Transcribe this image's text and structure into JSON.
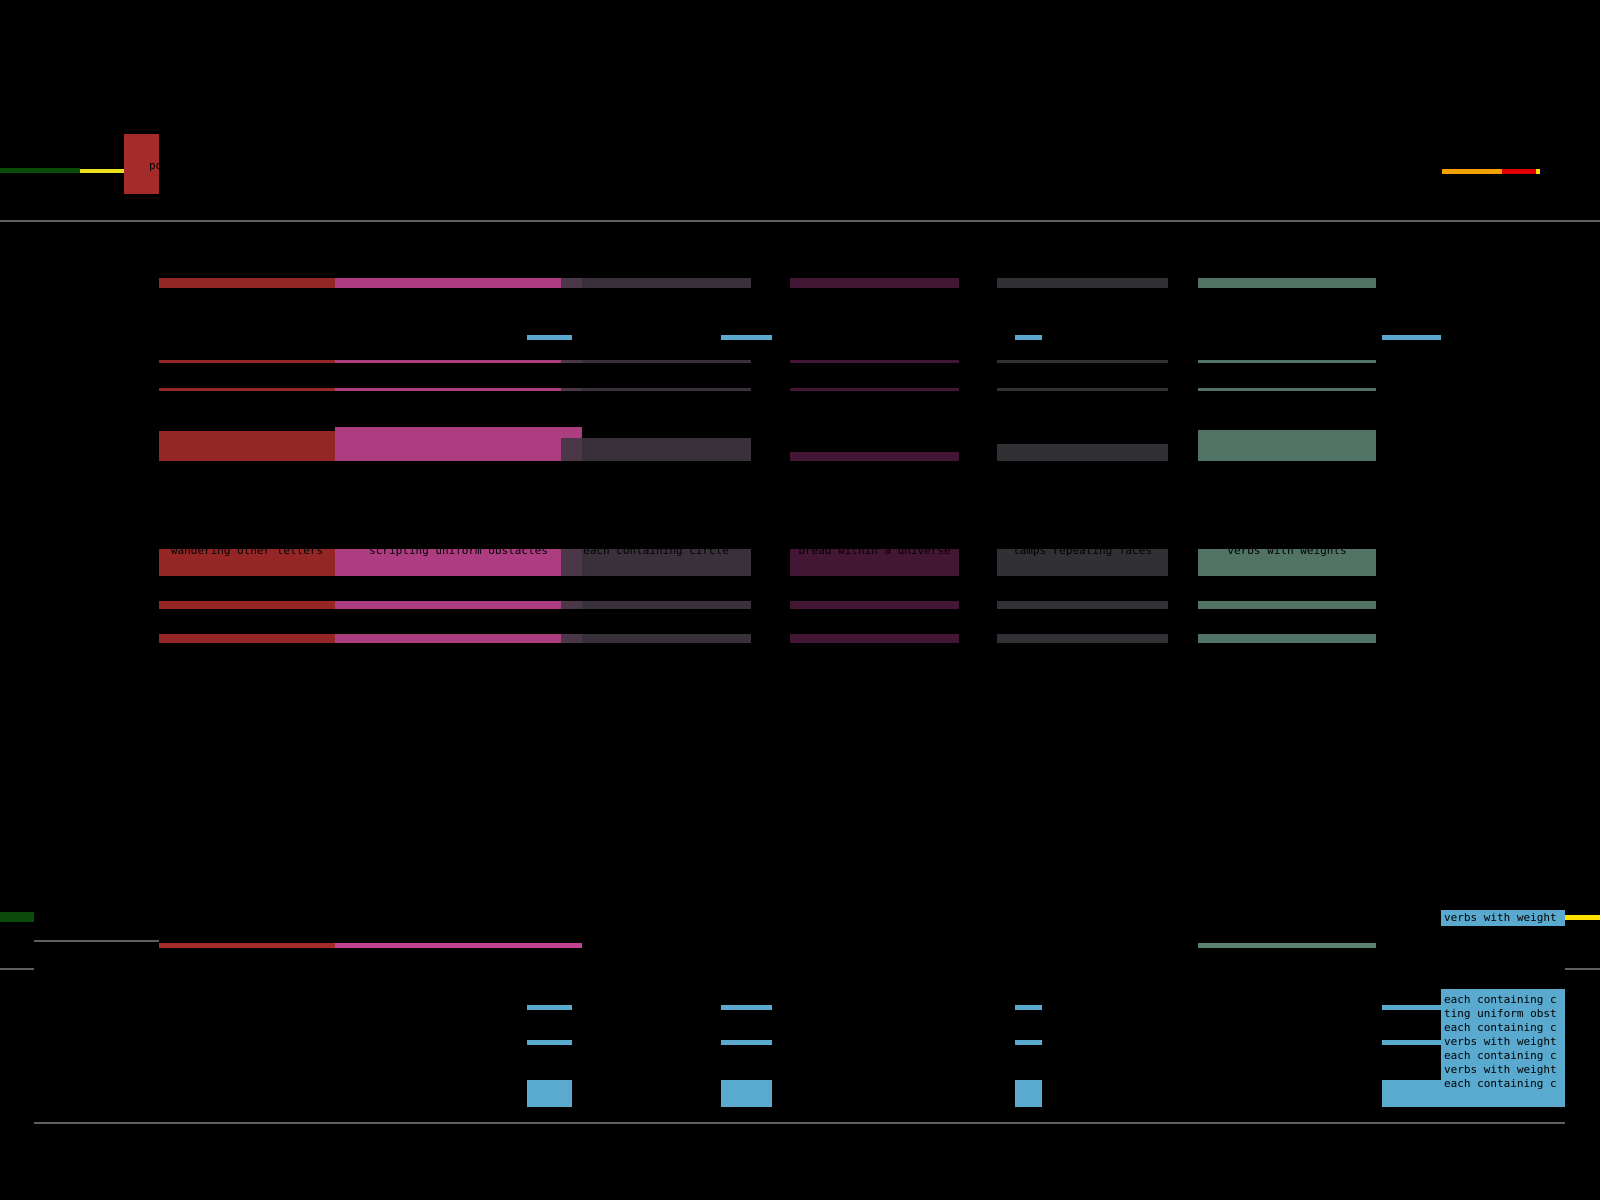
{
  "header": {
    "tab": "po"
  },
  "columns": [
    {
      "label": "wandering other letters",
      "color": "#a52a2a"
    },
    {
      "label": "scripting uniform obstacles",
      "color": "#c0448f"
    },
    {
      "label": "each containing circle",
      "color": "#3f3640"
    },
    {
      "label": "bread within a universe",
      "color": "#4a1838"
    },
    {
      "label": "lamps repeating faces",
      "color": "#36353b"
    },
    {
      "label": "verbs with weights",
      "color": "#5a8070"
    }
  ],
  "panel": {
    "items": [
      "verbs with weight",
      "each containing c",
      "ting uniform obst",
      "each containing c",
      "verbs with weight",
      "each containing c",
      "verbs with weight",
      "each containing c"
    ]
  }
}
